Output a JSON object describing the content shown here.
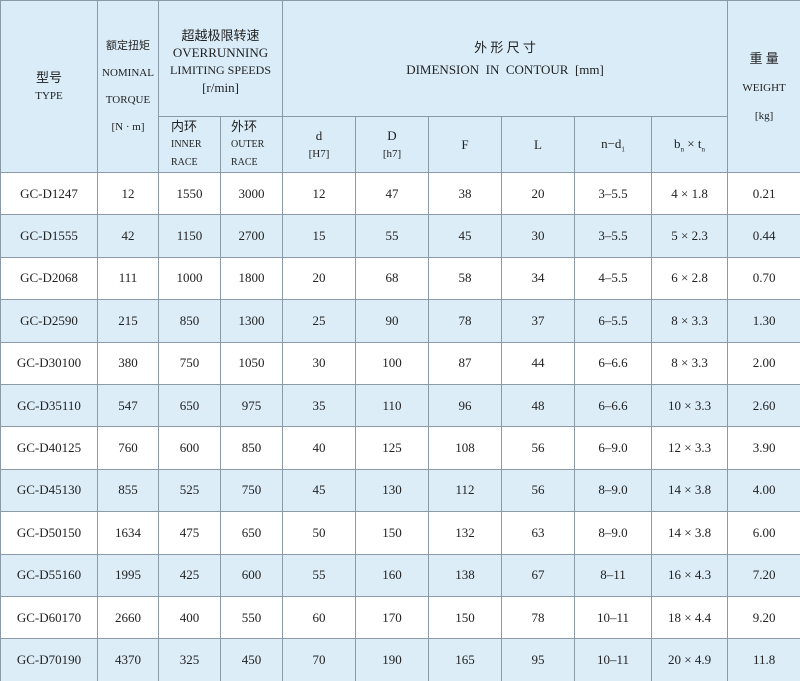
{
  "header": {
    "type": {
      "cn": "型号",
      "en": "TYPE"
    },
    "torque": {
      "cn": "额定扭矩",
      "en": [
        "NOMINAL",
        "TORQUE"
      ],
      "unit": "[N · m]"
    },
    "speeds": {
      "cn": "超越极限转速",
      "en": [
        "OVERRUNNING",
        "LIMITING SPEEDS"
      ],
      "unit": "[r/min]"
    },
    "dimension": {
      "cn": "外 形 尺 寸",
      "en": "DIMENSION  IN  CONTOUR  [mm]"
    },
    "weight": {
      "cn": "重 量",
      "en": "WEIGHT",
      "unit": "[kg]"
    },
    "inner": {
      "cn": "内环",
      "en": [
        "INNER",
        "RACE"
      ]
    },
    "outer": {
      "cn": "外环",
      "en": [
        "OUTER",
        "RACE"
      ]
    },
    "d": {
      "label": "d",
      "unit": "[H7]"
    },
    "D": {
      "label": "D",
      "unit": "[h7]"
    },
    "F": "F",
    "L": "L",
    "nd": {
      "main": "n−d",
      "sub": "1"
    },
    "bt": {
      "b": "b",
      "bs": "n",
      "x": " × ",
      "t": "t",
      "ts": "n"
    }
  },
  "table": {
    "rows": [
      [
        "GC-D1247",
        "12",
        "1550",
        "3000",
        "12",
        "47",
        "38",
        "20",
        "3–5.5",
        "4 × 1.8",
        "0.21"
      ],
      [
        "GC-D1555",
        "42",
        "1150",
        "2700",
        "15",
        "55",
        "45",
        "30",
        "3–5.5",
        "5 × 2.3",
        "0.44"
      ],
      [
        "GC-D2068",
        "111",
        "1000",
        "1800",
        "20",
        "68",
        "58",
        "34",
        "4–5.5",
        "6 × 2.8",
        "0.70"
      ],
      [
        "GC-D2590",
        "215",
        "850",
        "1300",
        "25",
        "90",
        "78",
        "37",
        "6–5.5",
        "8 × 3.3",
        "1.30"
      ],
      [
        "GC-D30100",
        "380",
        "750",
        "1050",
        "30",
        "100",
        "87",
        "44",
        "6–6.6",
        "8 × 3.3",
        "2.00"
      ],
      [
        "GC-D35110",
        "547",
        "650",
        "975",
        "35",
        "110",
        "96",
        "48",
        "6–6.6",
        "10 × 3.3",
        "2.60"
      ],
      [
        "GC-D40125",
        "760",
        "600",
        "850",
        "40",
        "125",
        "108",
        "56",
        "6–9.0",
        "12 × 3.3",
        "3.90"
      ],
      [
        "GC-D45130",
        "855",
        "525",
        "750",
        "45",
        "130",
        "112",
        "56",
        "8–9.0",
        "14 × 3.8",
        "4.00"
      ],
      [
        "GC-D50150",
        "1634",
        "475",
        "650",
        "50",
        "150",
        "132",
        "63",
        "8–9.0",
        "14 × 3.8",
        "6.00"
      ],
      [
        "GC-D55160",
        "1995",
        "425",
        "600",
        "55",
        "160",
        "138",
        "67",
        "8–11",
        "16 × 4.3",
        "7.20"
      ],
      [
        "GC-D60170",
        "2660",
        "400",
        "550",
        "60",
        "170",
        "150",
        "78",
        "10–11",
        "18 × 4.4",
        "9.20"
      ],
      [
        "GC-D70190",
        "4370",
        "325",
        "450",
        "70",
        "190",
        "165",
        "95",
        "10–11",
        "20 × 4.9",
        "11.8"
      ]
    ]
  }
}
